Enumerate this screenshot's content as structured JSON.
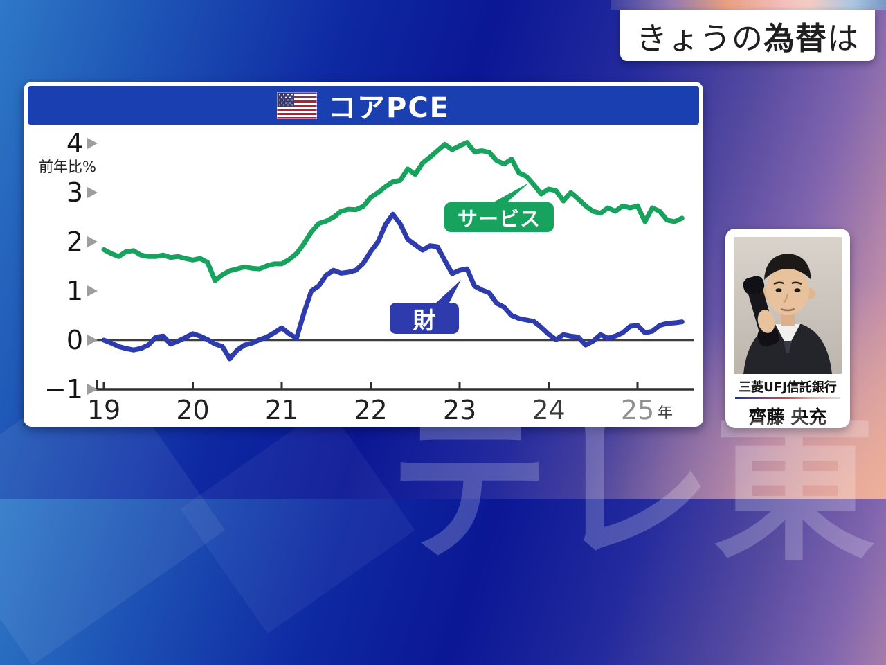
{
  "header": {
    "pre": "きょうの",
    "emph": "為替",
    "post": "は"
  },
  "chart": {
    "title": "コアPCE",
    "flag_icon": "us-flag"
  },
  "chart_data": {
    "type": "line",
    "title": "コアPCE",
    "ylabel": "前年比%",
    "ylim": [
      -1,
      4.3
    ],
    "y_ticks": [
      "4",
      "3",
      "2",
      "1",
      "0",
      "−1"
    ],
    "x_ticks": [
      "19",
      "20",
      "21",
      "22",
      "23",
      "24",
      "25"
    ],
    "x_tick_suffix": "年",
    "x_monthly": {
      "start": "2019-01",
      "end": "2025-07"
    },
    "zero_line": true,
    "grid": false,
    "legend_position": "inline-labels",
    "series": [
      {
        "id": "services",
        "name": "サービス",
        "color": "#17a35e",
        "values": [
          1.84,
          1.76,
          1.7,
          1.8,
          1.82,
          1.73,
          1.7,
          1.7,
          1.73,
          1.68,
          1.7,
          1.66,
          1.63,
          1.66,
          1.58,
          1.21,
          1.33,
          1.41,
          1.45,
          1.49,
          1.46,
          1.45,
          1.51,
          1.55,
          1.55,
          1.64,
          1.76,
          1.96,
          2.2,
          2.37,
          2.42,
          2.5,
          2.62,
          2.66,
          2.65,
          2.72,
          2.9,
          3.0,
          3.12,
          3.22,
          3.25,
          3.48,
          3.37,
          3.6,
          3.72,
          3.85,
          3.98,
          3.87,
          3.95,
          4.02,
          3.83,
          3.85,
          3.82,
          3.65,
          3.58,
          3.68,
          3.4,
          3.33,
          3.16,
          2.97,
          3.07,
          3.04,
          2.83,
          3.0,
          2.87,
          2.73,
          2.62,
          2.58,
          2.69,
          2.62,
          2.73,
          2.69,
          2.73,
          2.41,
          2.69,
          2.62,
          2.44,
          2.41,
          2.48
        ]
      },
      {
        "id": "goods",
        "name": "財",
        "color": "#2d3bac",
        "values": [
          0.0,
          -0.06,
          -0.13,
          -0.17,
          -0.2,
          -0.17,
          -0.1,
          0.06,
          0.08,
          -0.08,
          -0.02,
          0.05,
          0.13,
          0.08,
          0.01,
          -0.08,
          -0.13,
          -0.38,
          -0.2,
          -0.1,
          -0.06,
          0.01,
          0.06,
          0.15,
          0.25,
          0.13,
          0.04,
          0.55,
          1.0,
          1.1,
          1.32,
          1.42,
          1.36,
          1.38,
          1.42,
          1.56,
          1.8,
          2.0,
          2.35,
          2.56,
          2.36,
          2.05,
          1.94,
          1.83,
          1.92,
          1.9,
          1.62,
          1.35,
          1.42,
          1.45,
          1.1,
          1.02,
          0.96,
          0.75,
          0.67,
          0.5,
          0.44,
          0.41,
          0.38,
          0.26,
          0.12,
          0.01,
          0.11,
          0.08,
          0.06,
          -0.1,
          -0.02,
          0.11,
          0.04,
          0.08,
          0.15,
          0.28,
          0.3,
          0.15,
          0.18,
          0.3,
          0.34,
          0.35,
          0.37
        ]
      }
    ]
  },
  "colors": {
    "title_bar": "#1a3fb1",
    "axis": "#2e2e2e",
    "zero_line": "#3d3d3d",
    "tick_triangle": "#9e9e9e",
    "faded_tick_label": "#909090"
  },
  "analyst": {
    "company": "三菱UFJ信託銀行",
    "name": "齊藤 央充"
  },
  "watermark": "テレ東"
}
